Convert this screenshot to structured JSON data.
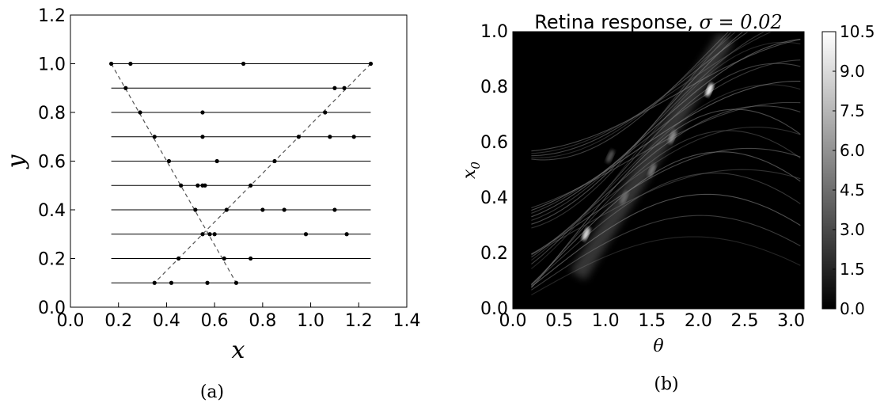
{
  "chart_data": [
    {
      "type": "scatter",
      "caption": "(a)",
      "xlabel": "x",
      "ylabel": "y",
      "xlim": [
        0.0,
        1.4
      ],
      "ylim": [
        0.0,
        1.2
      ],
      "xticks": [
        "0.0",
        "0.2",
        "0.4",
        "0.6",
        "0.8",
        "1.0",
        "1.2",
        "1.4"
      ],
      "yticks": [
        "0.0",
        "0.2",
        "0.4",
        "0.6",
        "0.8",
        "1.0",
        "1.2"
      ],
      "grid": false,
      "horizontal_lines": {
        "y": [
          0.1,
          0.2,
          0.3,
          0.4,
          0.5,
          0.6,
          0.7,
          0.8,
          0.9,
          1.0
        ],
        "xmin": 0.17,
        "xmax": 1.25,
        "color": "#000000"
      },
      "dashed_lines": [
        {
          "x": [
            0.17,
            0.69
          ],
          "y": [
            1.0,
            0.1
          ],
          "color": "#555555"
        },
        {
          "x": [
            1.25,
            0.35
          ],
          "y": [
            1.0,
            0.1
          ],
          "color": "#555555"
        }
      ],
      "points": [
        {
          "y": 1.0,
          "x": [
            0.17,
            0.25,
            0.72,
            1.25
          ]
        },
        {
          "y": 0.9,
          "x": [
            0.23,
            1.1,
            1.14
          ]
        },
        {
          "y": 0.8,
          "x": [
            0.29,
            0.55,
            1.06
          ]
        },
        {
          "y": 0.7,
          "x": [
            0.35,
            0.55,
            0.95,
            1.08,
            1.18
          ]
        },
        {
          "y": 0.6,
          "x": [
            0.41,
            0.61,
            0.85
          ]
        },
        {
          "y": 0.5,
          "x": [
            0.46,
            0.53,
            0.55,
            0.56,
            0.75
          ]
        },
        {
          "y": 0.4,
          "x": [
            0.52,
            0.65,
            0.8,
            0.89,
            1.1
          ]
        },
        {
          "y": 0.3,
          "x": [
            0.55,
            0.58,
            0.6,
            0.98,
            1.15
          ]
        },
        {
          "y": 0.2,
          "x": [
            0.45,
            0.64,
            0.75
          ]
        },
        {
          "y": 0.1,
          "x": [
            0.35,
            0.42,
            0.57,
            0.69
          ]
        }
      ]
    },
    {
      "type": "heatmap",
      "caption": "(b)",
      "title": "Retina response, ",
      "title_math": "σ = 0.02",
      "xlabel": "θ",
      "ylabel": "x",
      "ylabel_sub": "0",
      "xlim": [
        0.0,
        3.14
      ],
      "ylim": [
        0.0,
        1.0
      ],
      "xticks": [
        "0.0",
        "0.5",
        "1.0",
        "1.5",
        "2.0",
        "2.5",
        "3.0"
      ],
      "yticks": [
        "0.0",
        "0.2",
        "0.4",
        "0.6",
        "0.8",
        "1.0"
      ],
      "colormap": "gray",
      "colorbar_ticks": [
        "0.0",
        "1.5",
        "3.0",
        "4.5",
        "6.0",
        "7.5",
        "9.0",
        "10.5"
      ],
      "vmin": 0.0,
      "vmax": 10.5,
      "hotspots": [
        {
          "theta": 2.12,
          "x0": 0.79,
          "value": 10.5
        },
        {
          "theta": 0.79,
          "x0": 0.27,
          "value": 9.5
        },
        {
          "theta": 1.72,
          "x0": 0.62,
          "value": 6.0
        },
        {
          "theta": 1.5,
          "x0": 0.5,
          "value": 5.0
        },
        {
          "theta": 1.2,
          "x0": 0.4,
          "value": 4.5
        },
        {
          "theta": 1.05,
          "x0": 0.55,
          "value": 3.5
        }
      ]
    }
  ]
}
